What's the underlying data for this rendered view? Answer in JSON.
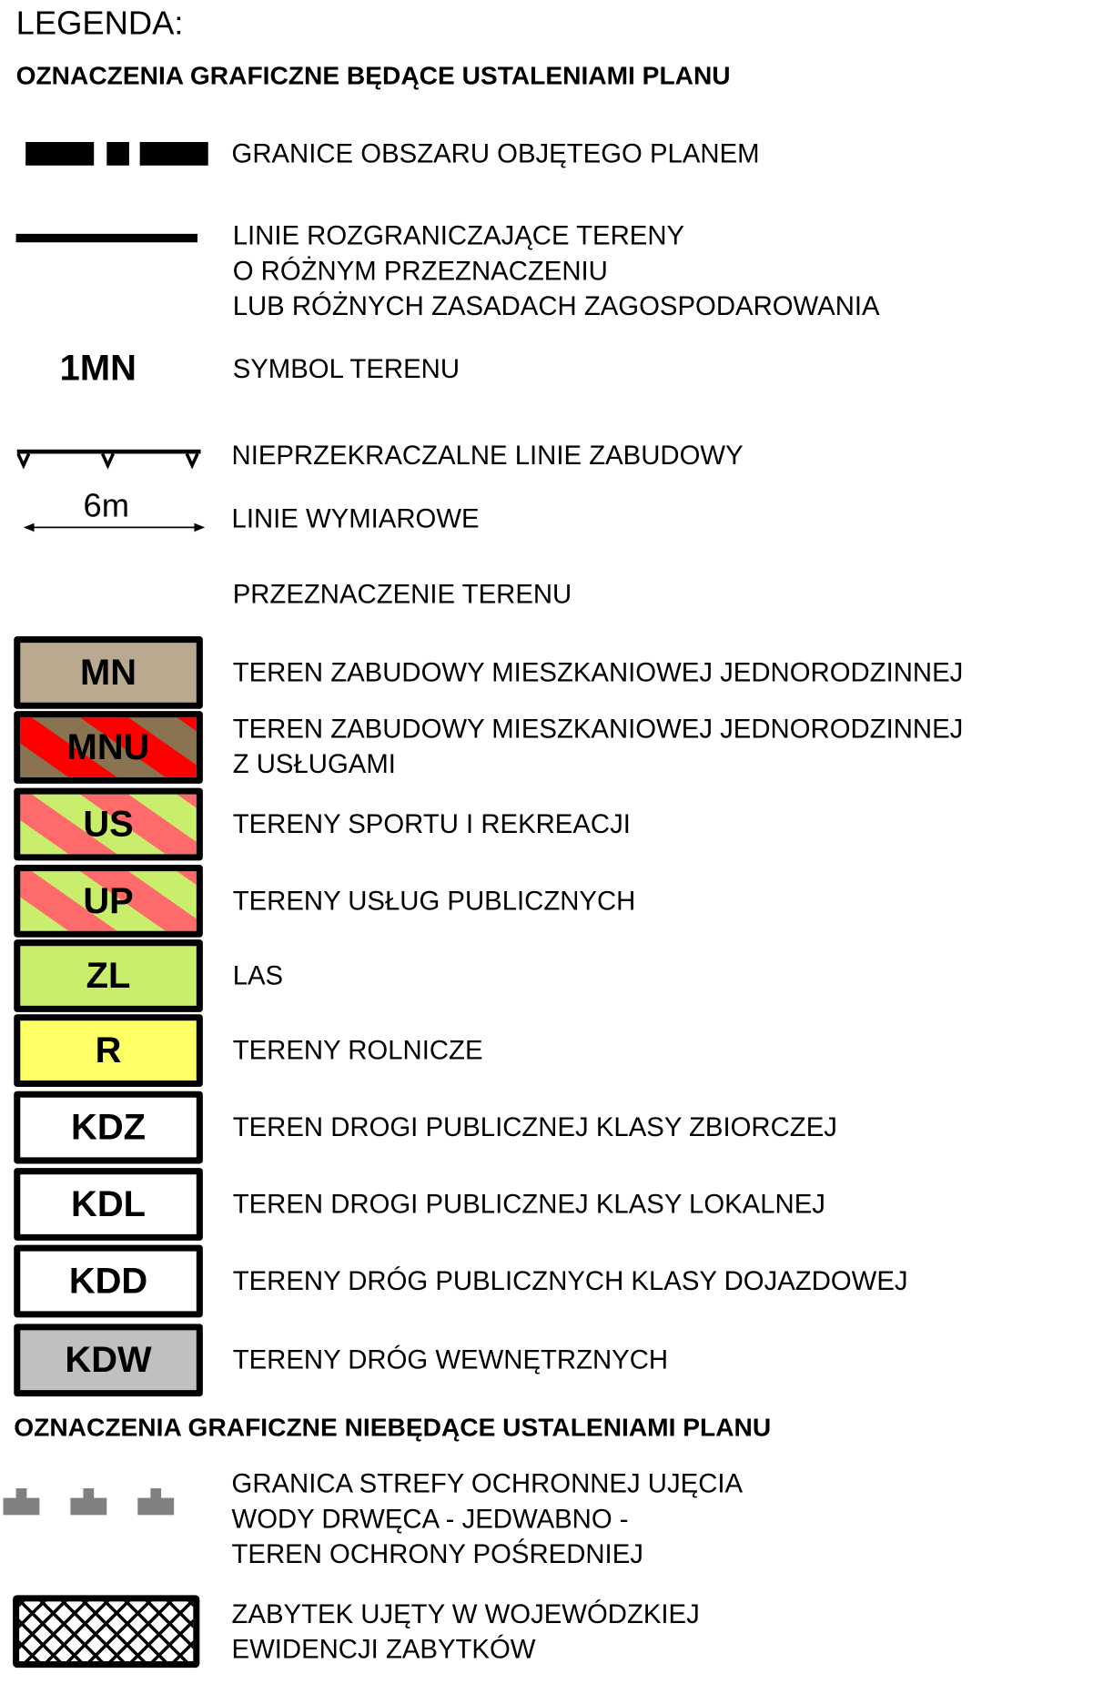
{
  "title": "LEGENDA:",
  "section1": "OZNACZENIA GRAFICZNE BĘDĄCE USTALENIAMI PLANU",
  "lines": [
    {
      "lines": [
        "GRANICE OBSZARU OBJĘTEGO PLANEM"
      ]
    },
    {
      "lines": [
        "LINIE ROZGRANICZAJĄCE TERENY",
        "O RÓŻNYM PRZEZNACZENIU",
        "LUB RÓŻNYCH ZASADACH ZAGOSPODAROWANIA"
      ]
    },
    {
      "symbol": "1MN",
      "lines": [
        "SYMBOL TERENU"
      ]
    },
    {
      "lines": [
        "NIEPRZEKRACZALNE LINIE ZABUDOWY"
      ]
    },
    {
      "symbol": "6m",
      "lines": [
        "LINIE WYMIAROWE"
      ]
    }
  ],
  "landuse_header": "PRZEZNACZENIE TERENU",
  "landuse": [
    {
      "code": "MN",
      "fill": "#b9a98f",
      "lines": [
        "TEREN ZABUDOWY MIESZKANIOWEJ JEDNORODZINNEJ"
      ]
    },
    {
      "code": "MNU",
      "fill": "#8a7350",
      "stripe": "#ff0000",
      "lines": [
        "TEREN ZABUDOWY MIESZKANIOWEJ JEDNORODZINNEJ",
        "Z USŁUGAMI"
      ]
    },
    {
      "code": "US",
      "fill": "#c8ee6c",
      "stripe": "#ff6b6b",
      "lines": [
        "TERENY SPORTU I REKREACJI"
      ]
    },
    {
      "code": "UP",
      "fill": "#c8ee6c",
      "stripe": "#ff6b6b",
      "lines": [
        "TERENY USŁUG PUBLICZNYCH"
      ]
    },
    {
      "code": "ZL",
      "fill": "#c8ee6c",
      "lines": [
        "LAS"
      ]
    },
    {
      "code": "R",
      "fill": "#ffff66",
      "lines": [
        "TERENY ROLNICZE"
      ]
    },
    {
      "code": "KDZ",
      "fill": "#ffffff",
      "lines": [
        "TEREN DROGI PUBLICZNEJ KLASY ZBIORCZEJ"
      ]
    },
    {
      "code": "KDL",
      "fill": "#ffffff",
      "lines": [
        "TEREN DROGI PUBLICZNEJ KLASY LOKALNEJ"
      ]
    },
    {
      "code": "KDD",
      "fill": "#ffffff",
      "lines": [
        "TERENY DRÓG PUBLICZNYCH KLASY DOJAZDOWEJ"
      ]
    },
    {
      "code": "KDW",
      "fill": "#c0c0c0",
      "lines": [
        "TERENY DRÓG WEWNĘTRZNYCH"
      ]
    }
  ],
  "section2": "OZNACZENIA GRAFICZNE NIEBĘDĄCE USTALENIAMI PLANU",
  "other": [
    {
      "icon": "protection-zone-marker-icon",
      "color": "#808080",
      "lines": [
        "GRANICA STREFY OCHRONNEJ UJĘCIA",
        "WODY DRWĘCA - JEDWABNO -",
        "TEREN OCHRONY POŚREDNIEJ"
      ]
    },
    {
      "icon": "crosshatch-monument-icon",
      "lines": [
        "ZABYTEK UJĘTY W WOJEWÓDZKIEJ",
        "EWIDENCJI ZABYTKÓW"
      ]
    }
  ]
}
